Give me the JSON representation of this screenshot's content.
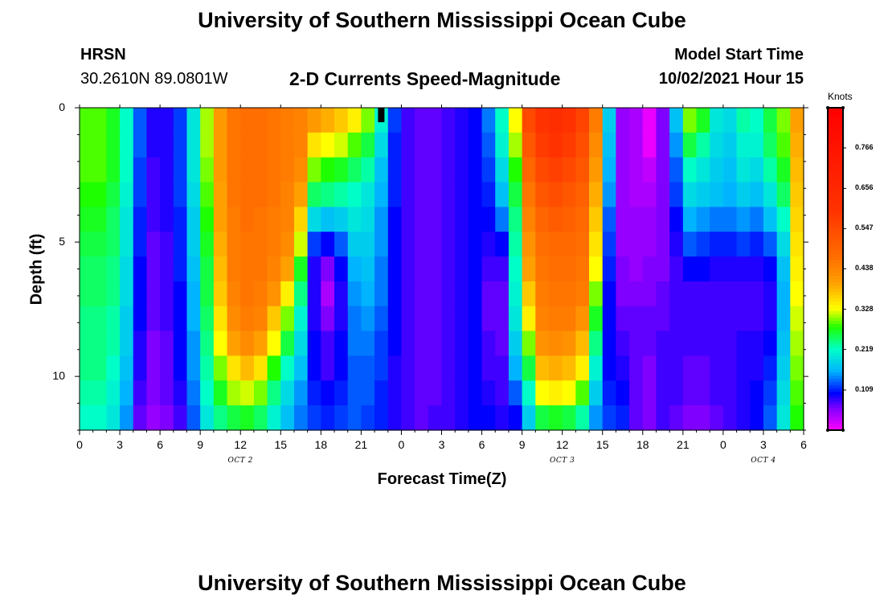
{
  "titles": {
    "top": "University of Southern Mississippi Ocean Cube",
    "bottom": "University of Southern Mississippi Ocean Cube"
  },
  "header": {
    "station": "HRSN",
    "coords": "30.2610N  89.0801W",
    "product": "2-D Currents Speed-Magnitude",
    "start_label": "Model Start Time",
    "start_value": "10/02/2021 Hour 15"
  },
  "chart_data": {
    "type": "heatmap",
    "title": "2-D Currents Speed-Magnitude",
    "xlabel": "Forecast Time(Z)",
    "ylabel": "Depth (ft)",
    "x_tick_labels": [
      "0",
      "3",
      "6",
      "9",
      "12",
      "15",
      "18",
      "21",
      "0",
      "3",
      "6",
      "9",
      "12",
      "15",
      "18",
      "21",
      "0",
      "3",
      "6"
    ],
    "x_hours_range": [
      0,
      54
    ],
    "date_labels": [
      {
        "text": "OCT 2",
        "hour": 12
      },
      {
        "text": "OCT 3",
        "hour": 36
      },
      {
        "text": "OCT 4",
        "hour": 51
      }
    ],
    "y_tick_labels": [
      "0",
      "5",
      "10"
    ],
    "y_range_ft": [
      0,
      12
    ],
    "y_tick_values": [
      0,
      5,
      10
    ],
    "model_start_hour": 22.5,
    "colorbar": {
      "label": "Knots",
      "range": [
        0,
        0.875
      ],
      "tick_labels": [
        "0.109",
        "0.219",
        "0.328",
        "0.438",
        "0.547",
        "0.656",
        "0.766"
      ],
      "tick_values": [
        0.109,
        0.219,
        0.328,
        0.438,
        0.547,
        0.656,
        0.766
      ]
    },
    "depth_levels_ft": [
      0,
      1,
      2,
      3,
      4,
      5,
      6,
      7,
      8,
      9,
      10,
      11,
      12
    ],
    "columns": [
      {
        "hour_start": 0,
        "hour_end": 1,
        "speeds": [
          0.29,
          0.29,
          0.29,
          0.28,
          0.27,
          0.26,
          0.25,
          0.25,
          0.24,
          0.24,
          0.24,
          0.23,
          0.22
        ]
      },
      {
        "hour_start": 1,
        "hour_end": 2,
        "speeds": [
          0.29,
          0.29,
          0.29,
          0.28,
          0.27,
          0.26,
          0.25,
          0.25,
          0.24,
          0.24,
          0.24,
          0.23,
          0.22
        ]
      },
      {
        "hour_start": 2,
        "hour_end": 3,
        "speeds": [
          0.27,
          0.27,
          0.27,
          0.26,
          0.25,
          0.25,
          0.24,
          0.24,
          0.23,
          0.23,
          0.22,
          0.21,
          0.2
        ]
      },
      {
        "hour_start": 3,
        "hour_end": 4,
        "speeds": [
          0.22,
          0.22,
          0.22,
          0.21,
          0.2,
          0.2,
          0.19,
          0.19,
          0.18,
          0.18,
          0.17,
          0.16,
          0.15
        ]
      },
      {
        "hour_start": 4,
        "hour_end": 5,
        "speeds": [
          0.13,
          0.13,
          0.12,
          0.12,
          0.11,
          0.11,
          0.1,
          0.1,
          0.1,
          0.09,
          0.09,
          0.08,
          0.07
        ]
      },
      {
        "hour_start": 5,
        "hour_end": 6,
        "speeds": [
          0.09,
          0.09,
          0.08,
          0.08,
          0.08,
          0.07,
          0.07,
          0.07,
          0.07,
          0.06,
          0.06,
          0.06,
          0.05
        ]
      },
      {
        "hour_start": 6,
        "hour_end": 7,
        "speeds": [
          0.09,
          0.09,
          0.09,
          0.09,
          0.09,
          0.08,
          0.08,
          0.08,
          0.08,
          0.07,
          0.07,
          0.07,
          0.06
        ]
      },
      {
        "hour_start": 7,
        "hour_end": 8,
        "speeds": [
          0.12,
          0.12,
          0.12,
          0.12,
          0.11,
          0.11,
          0.11,
          0.1,
          0.1,
          0.1,
          0.1,
          0.09,
          0.08
        ]
      },
      {
        "hour_start": 8,
        "hour_end": 9,
        "speeds": [
          0.2,
          0.2,
          0.2,
          0.19,
          0.18,
          0.18,
          0.17,
          0.16,
          0.16,
          0.15,
          0.15,
          0.14,
          0.13
        ]
      },
      {
        "hour_start": 9,
        "hour_end": 10,
        "speeds": [
          0.31,
          0.31,
          0.3,
          0.29,
          0.28,
          0.27,
          0.26,
          0.26,
          0.25,
          0.24,
          0.23,
          0.22,
          0.2
        ]
      },
      {
        "hour_start": 10,
        "hour_end": 11,
        "speeds": [
          0.41,
          0.41,
          0.41,
          0.4,
          0.4,
          0.39,
          0.38,
          0.37,
          0.35,
          0.33,
          0.3,
          0.27,
          0.24
        ]
      },
      {
        "hour_start": 11,
        "hour_end": 12,
        "speeds": [
          0.46,
          0.46,
          0.46,
          0.46,
          0.45,
          0.45,
          0.45,
          0.44,
          0.43,
          0.4,
          0.35,
          0.31,
          0.26
        ]
      },
      {
        "hour_start": 12,
        "hour_end": 13,
        "speeds": [
          0.47,
          0.47,
          0.47,
          0.47,
          0.47,
          0.46,
          0.46,
          0.46,
          0.45,
          0.43,
          0.38,
          0.32,
          0.27
        ]
      },
      {
        "hour_start": 13,
        "hour_end": 14,
        "speeds": [
          0.47,
          0.47,
          0.47,
          0.47,
          0.46,
          0.46,
          0.46,
          0.45,
          0.44,
          0.4,
          0.35,
          0.3,
          0.25
        ]
      },
      {
        "hour_start": 14,
        "hour_end": 15,
        "speeds": [
          0.46,
          0.46,
          0.46,
          0.46,
          0.45,
          0.45,
          0.44,
          0.42,
          0.37,
          0.33,
          0.28,
          0.24,
          0.21
        ]
      },
      {
        "hour_start": 15,
        "hour_end": 16,
        "speeds": [
          0.45,
          0.45,
          0.45,
          0.44,
          0.44,
          0.43,
          0.4,
          0.34,
          0.3,
          0.26,
          0.22,
          0.19,
          0.17
        ]
      },
      {
        "hour_start": 16,
        "hour_end": 17,
        "speeds": [
          0.44,
          0.44,
          0.43,
          0.4,
          0.36,
          0.32,
          0.27,
          0.24,
          0.21,
          0.19,
          0.17,
          0.15,
          0.14
        ]
      },
      {
        "hour_start": 17,
        "hour_end": 18,
        "speeds": [
          0.41,
          0.35,
          0.3,
          0.25,
          0.19,
          0.12,
          0.09,
          0.09,
          0.09,
          0.1,
          0.1,
          0.11,
          0.12
        ]
      },
      {
        "hour_start": 18,
        "hour_end": 19,
        "speeds": [
          0.39,
          0.33,
          0.28,
          0.24,
          0.17,
          0.1,
          0.06,
          0.04,
          0.06,
          0.08,
          0.08,
          0.1,
          0.11
        ]
      },
      {
        "hour_start": 19,
        "hour_end": 20,
        "speeds": [
          0.37,
          0.32,
          0.27,
          0.23,
          0.18,
          0.13,
          0.1,
          0.09,
          0.09,
          0.1,
          0.1,
          0.11,
          0.12
        ]
      },
      {
        "hour_start": 20,
        "hour_end": 21,
        "speeds": [
          0.34,
          0.29,
          0.25,
          0.22,
          0.2,
          0.18,
          0.16,
          0.15,
          0.14,
          0.14,
          0.13,
          0.13,
          0.13
        ]
      },
      {
        "hour_start": 21,
        "hour_end": 22,
        "speeds": [
          0.3,
          0.26,
          0.23,
          0.2,
          0.19,
          0.18,
          0.17,
          0.16,
          0.15,
          0.14,
          0.13,
          0.13,
          0.12
        ]
      },
      {
        "hour_start": 22,
        "hour_end": 23,
        "speeds": [
          0.21,
          0.19,
          0.17,
          0.16,
          0.15,
          0.15,
          0.14,
          0.14,
          0.13,
          0.12,
          0.12,
          0.11,
          0.11
        ]
      },
      {
        "hour_start": 23,
        "hour_end": 24,
        "speeds": [
          0.12,
          0.11,
          0.11,
          0.11,
          0.1,
          0.1,
          0.1,
          0.1,
          0.1,
          0.1,
          0.09,
          0.09,
          0.09
        ]
      },
      {
        "hour_start": 24,
        "hour_end": 25,
        "speeds": [
          0.08,
          0.08,
          0.08,
          0.08,
          0.08,
          0.08,
          0.08,
          0.08,
          0.08,
          0.08,
          0.08,
          0.08,
          0.08
        ]
      },
      {
        "hour_start": 25,
        "hour_end": 26,
        "speeds": [
          0.07,
          0.07,
          0.07,
          0.07,
          0.07,
          0.07,
          0.07,
          0.07,
          0.07,
          0.07,
          0.07,
          0.07,
          0.07
        ]
      },
      {
        "hour_start": 26,
        "hour_end": 27,
        "speeds": [
          0.07,
          0.07,
          0.07,
          0.07,
          0.07,
          0.07,
          0.07,
          0.07,
          0.07,
          0.07,
          0.07,
          0.07,
          0.08
        ]
      },
      {
        "hour_start": 27,
        "hour_end": 28,
        "speeds": [
          0.08,
          0.08,
          0.08,
          0.08,
          0.08,
          0.08,
          0.08,
          0.08,
          0.08,
          0.08,
          0.08,
          0.08,
          0.08
        ]
      },
      {
        "hour_start": 28,
        "hour_end": 29,
        "speeds": [
          0.09,
          0.09,
          0.09,
          0.09,
          0.09,
          0.09,
          0.09,
          0.09,
          0.09,
          0.09,
          0.09,
          0.09,
          0.09
        ]
      },
      {
        "hour_start": 29,
        "hour_end": 30,
        "speeds": [
          0.1,
          0.1,
          0.1,
          0.1,
          0.1,
          0.1,
          0.1,
          0.1,
          0.1,
          0.1,
          0.1,
          0.1,
          0.1
        ]
      },
      {
        "hour_start": 30,
        "hour_end": 31,
        "speeds": [
          0.14,
          0.13,
          0.12,
          0.11,
          0.1,
          0.09,
          0.08,
          0.07,
          0.07,
          0.08,
          0.08,
          0.09,
          0.1
        ]
      },
      {
        "hour_start": 31,
        "hour_end": 32,
        "speeds": [
          0.22,
          0.21,
          0.19,
          0.17,
          0.14,
          0.1,
          0.08,
          0.07,
          0.07,
          0.07,
          0.08,
          0.08,
          0.09
        ]
      },
      {
        "hour_start": 32,
        "hour_end": 33,
        "speeds": [
          0.33,
          0.31,
          0.28,
          0.26,
          0.24,
          0.23,
          0.22,
          0.21,
          0.2,
          0.18,
          0.16,
          0.13,
          0.1
        ]
      },
      {
        "hour_start": 33,
        "hour_end": 34,
        "speeds": [
          0.55,
          0.52,
          0.49,
          0.46,
          0.44,
          0.42,
          0.4,
          0.37,
          0.34,
          0.3,
          0.26,
          0.22,
          0.18
        ]
      },
      {
        "hour_start": 34,
        "hour_end": 35,
        "speeds": [
          0.6,
          0.58,
          0.55,
          0.52,
          0.49,
          0.47,
          0.46,
          0.45,
          0.44,
          0.42,
          0.38,
          0.33,
          0.26
        ]
      },
      {
        "hour_start": 35,
        "hour_end": 36,
        "speeds": [
          0.62,
          0.6,
          0.57,
          0.54,
          0.51,
          0.48,
          0.47,
          0.46,
          0.45,
          0.43,
          0.39,
          0.34,
          0.27
        ]
      },
      {
        "hour_start": 36,
        "hour_end": 37,
        "speeds": [
          0.6,
          0.58,
          0.55,
          0.52,
          0.5,
          0.48,
          0.47,
          0.46,
          0.45,
          0.42,
          0.38,
          0.33,
          0.26
        ]
      },
      {
        "hour_start": 37,
        "hour_end": 38,
        "speeds": [
          0.56,
          0.54,
          0.52,
          0.5,
          0.48,
          0.47,
          0.46,
          0.45,
          0.42,
          0.38,
          0.34,
          0.29,
          0.23
        ]
      },
      {
        "hour_start": 38,
        "hour_end": 39,
        "speeds": [
          0.45,
          0.43,
          0.41,
          0.39,
          0.37,
          0.35,
          0.33,
          0.3,
          0.27,
          0.24,
          0.21,
          0.18,
          0.15
        ]
      },
      {
        "hour_start": 39,
        "hour_end": 40,
        "speeds": [
          0.18,
          0.17,
          0.16,
          0.15,
          0.13,
          0.12,
          0.11,
          0.1,
          0.1,
          0.1,
          0.1,
          0.11,
          0.12
        ]
      },
      {
        "hour_start": 40,
        "hour_end": 41,
        "speeds": [
          0.05,
          0.05,
          0.05,
          0.05,
          0.05,
          0.05,
          0.06,
          0.06,
          0.07,
          0.08,
          0.09,
          0.1,
          0.11
        ]
      },
      {
        "hour_start": 41,
        "hour_end": 42,
        "speeds": [
          0.04,
          0.04,
          0.04,
          0.04,
          0.05,
          0.05,
          0.05,
          0.06,
          0.07,
          0.07,
          0.07,
          0.07,
          0.07
        ]
      },
      {
        "hour_start": 42,
        "hour_end": 43,
        "speeds": [
          0.01,
          0.01,
          0.03,
          0.04,
          0.05,
          0.05,
          0.06,
          0.06,
          0.07,
          0.07,
          0.06,
          0.06,
          0.06
        ]
      },
      {
        "hour_start": 43,
        "hour_end": 44,
        "speeds": [
          0.06,
          0.06,
          0.06,
          0.06,
          0.06,
          0.06,
          0.06,
          0.07,
          0.07,
          0.08,
          0.08,
          0.08,
          0.08
        ]
      },
      {
        "hour_start": 44,
        "hour_end": 45,
        "speeds": [
          0.17,
          0.15,
          0.13,
          0.12,
          0.1,
          0.09,
          0.08,
          0.08,
          0.08,
          0.08,
          0.08,
          0.08,
          0.07
        ]
      },
      {
        "hour_start": 45,
        "hour_end": 46,
        "speeds": [
          0.3,
          0.26,
          0.22,
          0.19,
          0.16,
          0.13,
          0.1,
          0.08,
          0.08,
          0.08,
          0.07,
          0.07,
          0.06
        ]
      },
      {
        "hour_start": 46,
        "hour_end": 47,
        "speeds": [
          0.27,
          0.23,
          0.2,
          0.18,
          0.15,
          0.12,
          0.1,
          0.08,
          0.08,
          0.08,
          0.07,
          0.07,
          0.06
        ]
      },
      {
        "hour_start": 47,
        "hour_end": 48,
        "speeds": [
          0.2,
          0.19,
          0.18,
          0.17,
          0.14,
          0.11,
          0.09,
          0.08,
          0.08,
          0.08,
          0.08,
          0.08,
          0.07
        ]
      },
      {
        "hour_start": 48,
        "hour_end": 49,
        "speeds": [
          0.19,
          0.18,
          0.17,
          0.16,
          0.14,
          0.11,
          0.09,
          0.08,
          0.08,
          0.08,
          0.08,
          0.08,
          0.08
        ]
      },
      {
        "hour_start": 49,
        "hour_end": 50,
        "speeds": [
          0.23,
          0.21,
          0.2,
          0.18,
          0.15,
          0.12,
          0.09,
          0.08,
          0.08,
          0.09,
          0.09,
          0.09,
          0.09
        ]
      },
      {
        "hour_start": 50,
        "hour_end": 51,
        "speeds": [
          0.22,
          0.21,
          0.19,
          0.17,
          0.14,
          0.11,
          0.09,
          0.08,
          0.08,
          0.09,
          0.09,
          0.1,
          0.1
        ]
      },
      {
        "hour_start": 51,
        "hour_end": 52,
        "speeds": [
          0.26,
          0.25,
          0.23,
          0.2,
          0.17,
          0.13,
          0.1,
          0.09,
          0.09,
          0.1,
          0.11,
          0.12,
          0.13
        ]
      },
      {
        "hour_start": 52,
        "hour_end": 53,
        "speeds": [
          0.3,
          0.29,
          0.27,
          0.25,
          0.22,
          0.19,
          0.17,
          0.16,
          0.16,
          0.17,
          0.18,
          0.19,
          0.2
        ]
      },
      {
        "hour_start": 53,
        "hour_end": 54,
        "speeds": [
          0.4,
          0.39,
          0.38,
          0.37,
          0.36,
          0.35,
          0.34,
          0.33,
          0.32,
          0.31,
          0.3,
          0.29,
          0.28
        ]
      }
    ]
  }
}
